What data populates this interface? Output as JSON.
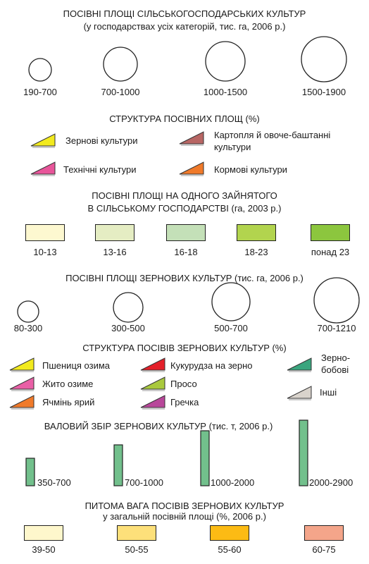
{
  "section1": {
    "title_line1": "ПОСІВНІ ПЛОЩІ СІЛЬСЬКОГОСПОДАРСЬКИХ КУЛЬТУР",
    "title_line2": "(у господарствах усіх категорій, тис. га, 2006 р.)",
    "circles": [
      {
        "label": "190-700"
      },
      {
        "label": "700-1000"
      },
      {
        "label": "1000-1500"
      },
      {
        "label": "1500-1900"
      }
    ]
  },
  "section2": {
    "title": "СТРУКТУРА ПОСІВНИХ ПЛОЩ (%)",
    "items": [
      {
        "label": "Зернові культури",
        "color": "#f2ea1e"
      },
      {
        "label": "Картопля й овоче-баштанні",
        "label2": "культури",
        "color": "#b86664"
      },
      {
        "label": "Технічні культури",
        "color": "#e8559a"
      },
      {
        "label": "Кормові культури",
        "color": "#f07a2a"
      }
    ]
  },
  "section3": {
    "title_line1": "ПОСІВНІ ПЛОЩІ НА ОДНОГО ЗАЙНЯТОГО",
    "title_line2": "В СІЛЬСЬКОМУ ГОСПОДАРСТВІ (га, 2003 р.)",
    "boxes": [
      {
        "label": "10-13",
        "color": "#fdf8d0"
      },
      {
        "label": "13-16",
        "color": "#e5edc3"
      },
      {
        "label": "16-18",
        "color": "#c4e0b8"
      },
      {
        "label": "18-23",
        "color": "#b2d44e"
      },
      {
        "label": "понад 23",
        "color": "#8cc63e"
      }
    ]
  },
  "section4": {
    "title": "ПОСІВНІ ПЛОЩІ ЗЕРНОВИХ КУЛЬТУР (тис. га, 2006 р.)",
    "circles": [
      {
        "label": "80-300"
      },
      {
        "label": "300-500"
      },
      {
        "label": "500-700"
      },
      {
        "label": "700-1210"
      }
    ]
  },
  "section5": {
    "title": "СТРУКТУРА ПОСІВІВ ЗЕРНОВИХ КУЛЬТУР (%)",
    "items": [
      {
        "label": "Пшениця озима",
        "color": "#f2ea1e"
      },
      {
        "label": "Жито озиме",
        "color": "#e95fa6"
      },
      {
        "label": "Ячмінь ярий",
        "color": "#f07a2a"
      },
      {
        "label": "Кукурудза на зерно",
        "color": "#e4202a"
      },
      {
        "label": "Просо",
        "color": "#a9c93d"
      },
      {
        "label": "Гречка",
        "color": "#b8479a"
      },
      {
        "label": "Зерно-",
        "label2": "бобові",
        "color": "#3aa57e"
      },
      {
        "label": "Інші",
        "color": "#d9d3cc"
      }
    ]
  },
  "section6": {
    "title": "ВАЛОВИЙ ЗБІР ЗЕРНОВИХ КУЛЬТУР (тис. т, 2006 р.)",
    "bar_color": "#72c08c",
    "bars": [
      {
        "label": "350-700"
      },
      {
        "label": "700-1000"
      },
      {
        "label": "1000-2000"
      },
      {
        "label": "2000-2900"
      }
    ]
  },
  "section7": {
    "title_line1": "ПИТОМА ВАГА ПОСІВІВ ЗЕРНОВИХ КУЛЬТУР",
    "title_line2": "у загальній посівній площі (%, 2006 р.)",
    "boxes": [
      {
        "label": "39-50",
        "color": "#fef7cc"
      },
      {
        "label": "50-55",
        "color": "#fde07a"
      },
      {
        "label": "55-60",
        "color": "#fcbb14"
      },
      {
        "label": "60-75",
        "color": "#f4a58a"
      }
    ]
  }
}
